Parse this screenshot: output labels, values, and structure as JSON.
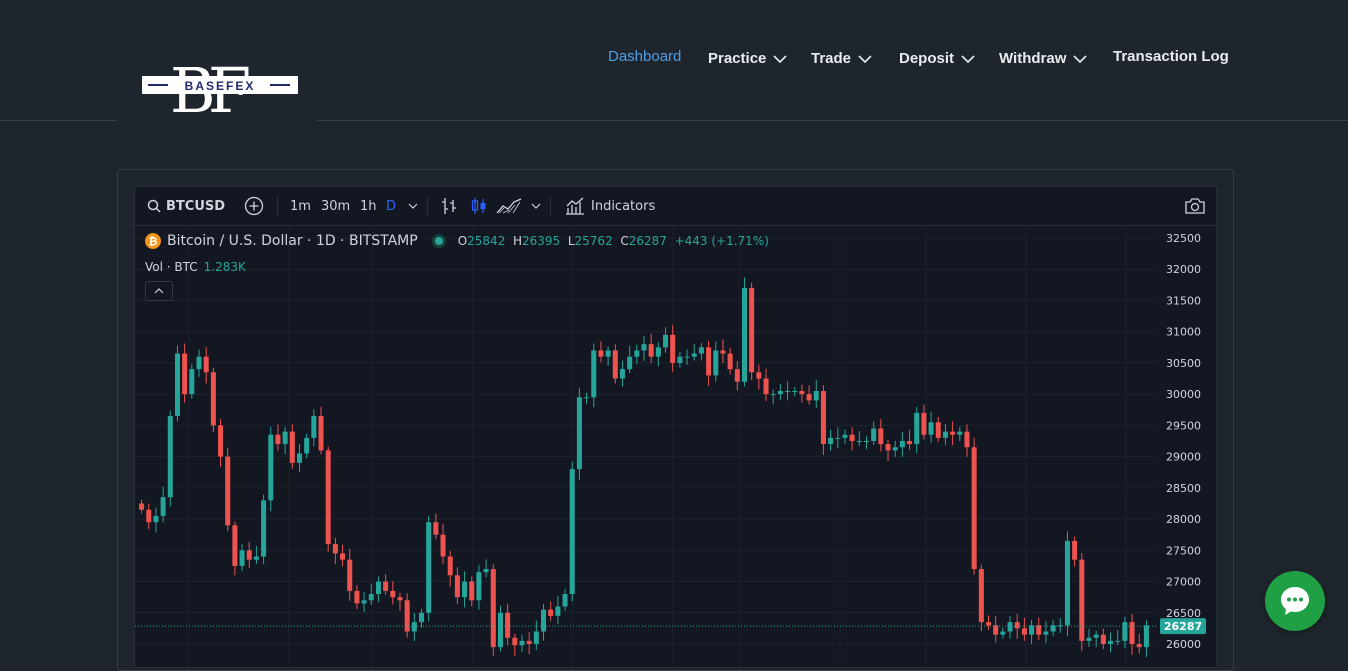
{
  "brand": {
    "logo_text": "BASEFEX",
    "logo_letters": "BF"
  },
  "nav": {
    "dashboard": "Dashboard",
    "practice": "Practice",
    "trade": "Trade",
    "deposit": "Deposit",
    "withdraw": "Withdraw",
    "transaction_log": "Transaction Log"
  },
  "toolbar": {
    "symbol": "BTCUSD",
    "intervals": [
      "1m",
      "30m",
      "1h",
      "D"
    ],
    "active_interval": "D",
    "indicators_label": "Indicators"
  },
  "legend": {
    "title": "Bitcoin / U.S. Dollar · 1D · BITSTAMP",
    "open_label": "O",
    "open": "25842",
    "high_label": "H",
    "high": "26395",
    "low_label": "L",
    "low": "25762",
    "close_label": "C",
    "close": "26287",
    "change": "+443 (+1.71%)",
    "vol_label": "Vol · BTC",
    "vol_value": "1.283K"
  },
  "colors": {
    "up": "#26a69a",
    "down": "#ef5350",
    "active_nav": "#4d9fe6",
    "chat": "#1fa045"
  },
  "chart_data": {
    "type": "candlestick",
    "ylim": [
      25950,
      32700
    ],
    "y_ticks": [
      32500,
      32000,
      31500,
      31000,
      30500,
      30000,
      29500,
      29000,
      28500,
      28000,
      27500,
      27000,
      26500,
      26000
    ],
    "last_price_label": "26287",
    "last_price": 26287,
    "close": [
      28150,
      27950,
      28050,
      28350,
      29650,
      30650,
      30000,
      30400,
      30600,
      30350,
      29500,
      29000,
      27900,
      27250,
      27500,
      27350,
      27400,
      28300,
      29350,
      29200,
      29400,
      28900,
      29050,
      29300,
      29650,
      29100,
      27600,
      27450,
      27350,
      26850,
      26650,
      26700,
      26800,
      27000,
      26850,
      26750,
      26700,
      26200,
      26350,
      26500,
      27950,
      27750,
      27400,
      27100,
      26750,
      27000,
      26700,
      27150,
      27200,
      25950,
      26500,
      26100,
      25980,
      26050,
      26000,
      26200,
      26550,
      26450,
      26600,
      26800,
      28800,
      29950,
      29950,
      30700,
      30600,
      30700,
      30250,
      30400,
      30600,
      30700,
      30800,
      30600,
      30750,
      30950,
      30500,
      30600,
      30600,
      30650,
      30750,
      30300,
      30700,
      30650,
      30400,
      30200,
      31700,
      30350,
      30250,
      30000,
      30000,
      30050,
      30050,
      30050,
      30000,
      29900,
      30050,
      29200,
      29300,
      29300,
      29350,
      29250,
      29250,
      29250,
      29450,
      29200,
      29100,
      29150,
      29250,
      29200,
      29700,
      29350,
      29550,
      29300,
      29400,
      29350,
      29400,
      29150,
      27200,
      26350,
      26300,
      26150,
      26200,
      26350,
      26250,
      26150,
      26300,
      26150,
      26200,
      26300,
      26300,
      27650,
      27350,
      26050,
      26100,
      26150,
      26000,
      26050,
      26050,
      26350,
      26000,
      25950,
      26300
    ],
    "volume_note": "Vol · BTC 1.283K"
  }
}
